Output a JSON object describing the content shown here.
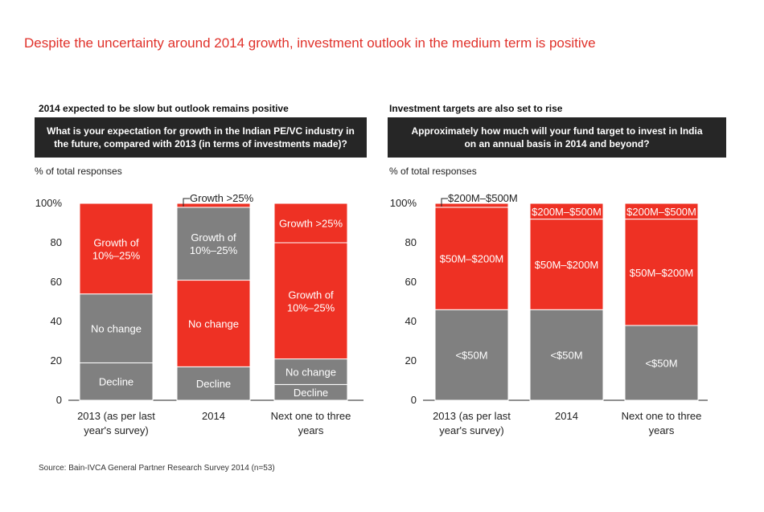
{
  "title": "Despite the uncertainty around 2014 growth, investment outlook in the medium term is positive",
  "source": "Source: Bain-IVCA General Partner Research Survey 2014 (n=53)",
  "colors": {
    "red": "#ee3124",
    "gray": "#808080",
    "title_red": "#e0312a",
    "dark": "#262626"
  },
  "left_panel": {
    "subtitle": "2014 expected to be slow but outlook remains positive",
    "question_line1": "What is your expectation for growth in the Indian PE/VC industry in",
    "question_line2": "the future, compared with 2013 (in terms of investments made)?",
    "ylabel": "% of total responses"
  },
  "right_panel": {
    "subtitle": "Investment targets are also set to rise",
    "question_line1": "Approximately how much will your fund target to invest in India",
    "question_line2": "on an annual basis in 2014 and beyond?",
    "ylabel": "% of total responses"
  },
  "chart_data": [
    {
      "type": "bar",
      "stacked": true,
      "title": "2014 expected to be slow but outlook remains positive",
      "ylabel": "% of total responses",
      "ylim": [
        0,
        100
      ],
      "yticks": [
        "0",
        "20",
        "40",
        "60",
        "80",
        "100%"
      ],
      "categories": [
        [
          "2013 (as per last",
          "year's survey)"
        ],
        [
          "2014"
        ],
        [
          "Next one to three",
          "years"
        ]
      ],
      "series": [
        {
          "name": "Decline",
          "color": "gray",
          "values": [
            19,
            17,
            8
          ],
          "labels": [
            "Decline",
            "Decline",
            "Decline"
          ]
        },
        {
          "name": "No change",
          "color": "gray",
          "values": [
            35,
            44,
            13
          ],
          "labels": [
            "No change",
            "No change",
            "No change"
          ]
        },
        {
          "name": "Growth of 10%–25%",
          "color": "red",
          "values": [
            46,
            37,
            59
          ],
          "labels": [
            "Growth of\n10%–25%",
            "Growth of\n10%–25%",
            "Growth of\n10%–25%"
          ]
        },
        {
          "name": "Growth >25%",
          "color": "red",
          "values": [
            0,
            2,
            20
          ],
          "labels": [
            "",
            "Growth >25%",
            "Growth >25%"
          ],
          "callout": [
            false,
            true,
            false
          ]
        }
      ],
      "segment_colors": [
        [
          "gray",
          "gray",
          "red",
          "red"
        ],
        [
          "gray",
          "red",
          "gray",
          "red"
        ],
        [
          "gray",
          "gray",
          "red",
          "red"
        ]
      ]
    },
    {
      "type": "bar",
      "stacked": true,
      "title": "Investment targets are also set to rise",
      "ylabel": "% of total responses",
      "ylim": [
        0,
        100
      ],
      "yticks": [
        "0",
        "20",
        "40",
        "60",
        "80",
        "100%"
      ],
      "categories": [
        [
          "2013 (as per last",
          "year's survey)"
        ],
        [
          "2014"
        ],
        [
          "Next one to three",
          "years"
        ]
      ],
      "series": [
        {
          "name": "<$50M",
          "color": "gray",
          "values": [
            46,
            46,
            38
          ],
          "labels": [
            "<$50M",
            "<$50M",
            "<$50M"
          ]
        },
        {
          "name": "$50M–$200M",
          "color": "red",
          "values": [
            52,
            46,
            54
          ],
          "labels": [
            "$50M–$200M",
            "$50M–$200M",
            "$50M–$200M"
          ]
        },
        {
          "name": "$200M–$500M",
          "color": "red",
          "values": [
            2,
            8,
            8
          ],
          "labels": [
            "$200M–$500M",
            "$200M–$500M",
            "$200M–$500M"
          ],
          "callout": [
            true,
            false,
            false
          ]
        }
      ]
    }
  ]
}
